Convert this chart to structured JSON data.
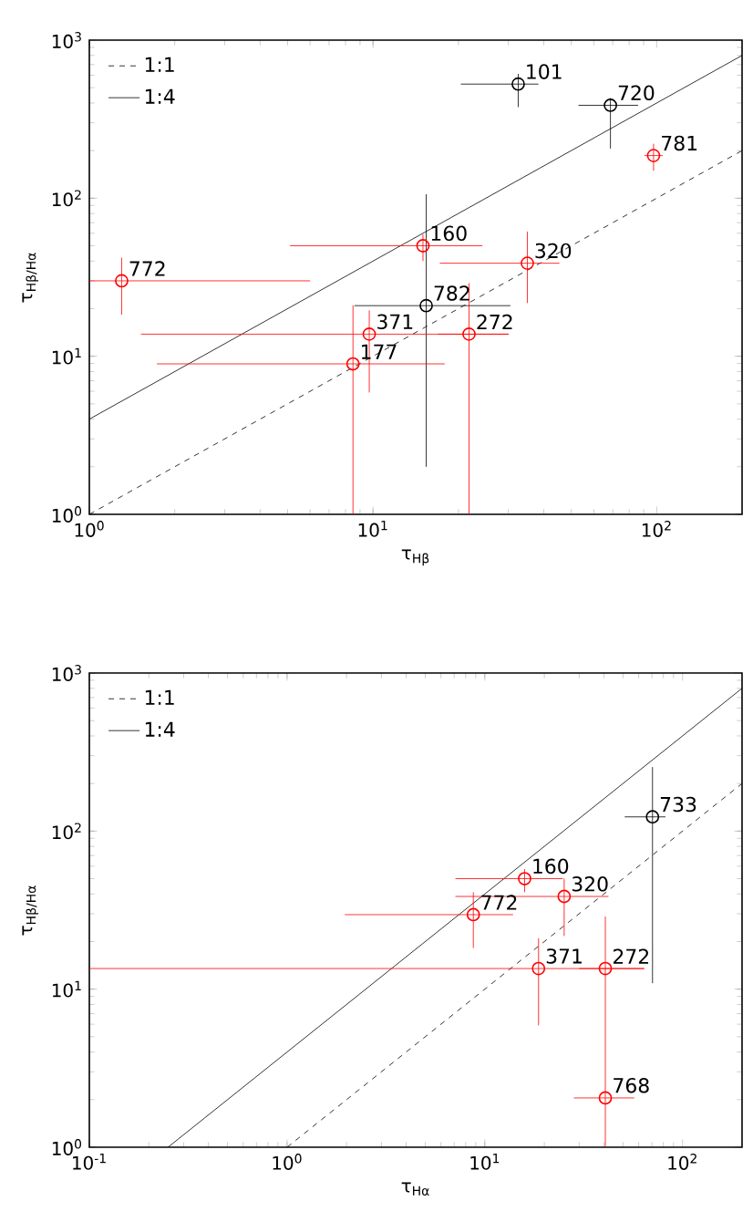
{
  "chart_data": [
    {
      "type": "scatter",
      "xlabel": "τ$_{Hβ}$",
      "ylabel": "τ$_{Hβ/Hα}$",
      "log": "xy",
      "legend": "top left",
      "xlim": [
        1,
        200
      ],
      "ylim": [
        1,
        1000
      ],
      "xticks": [
        {
          "value": 1,
          "label": "10$^{0}$"
        },
        {
          "value": 10,
          "label": "10$^{1}$"
        },
        {
          "value": 100,
          "label": "10$^{2}$"
        }
      ],
      "yticks": [
        {
          "value": 1,
          "label": "10$^{0}$"
        },
        {
          "value": 10,
          "label": "10$^{1}$"
        },
        {
          "value": 100,
          "label": "10$^{2}$"
        },
        {
          "value": 1000,
          "label": "10$^{3}$"
        }
      ],
      "series": [
        {
          "type": "line",
          "name": "1:1",
          "color": "#000000",
          "line_style": "dashed",
          "marker": "none",
          "x": [
            1,
            200
          ],
          "values": [
            1,
            200
          ]
        },
        {
          "type": "line",
          "name": "1:4",
          "color": "#000000",
          "line_style": "solid",
          "marker": "none",
          "x": [
            1,
            200
          ],
          "values": [
            4,
            800
          ]
        },
        {
          "type": "scatter",
          "color": "#000000",
          "marker": "circle",
          "x": [
            32.5,
            68.7,
            15.4
          ],
          "values": [
            527,
            387,
            20.9
          ],
          "xerrors": [
            [
              20.4,
              38.3
            ],
            [
              53,
              86
            ],
            [
              8.6,
              30.5
            ]
          ],
          "errors": [
            [
              377,
              612
            ],
            [
              206,
              430
            ],
            [
              2.0,
              106
            ]
          ]
        },
        {
          "type": "scatter",
          "color": "#ff0000",
          "marker": "circle",
          "x": [
            1.3,
            97.5,
            15.0,
            35.0,
            9.7,
            21.8,
            8.5
          ],
          "values": [
            30,
            186,
            50,
            38.8,
            13.8,
            13.8,
            8.95
          ],
          "xerrors": [
            [
              1.0,
              6.0
            ],
            [
              90.5,
              105
            ],
            [
              5.1,
              24.3
            ],
            [
              17.2,
              45.4
            ],
            [
              1.52,
              30.1
            ],
            [
              17,
              30
            ],
            [
              1.73,
              17.9
            ]
          ],
          "errors": [
            [
              18.3,
              42
            ],
            [
              149,
              221
            ],
            [
              40,
              59
            ],
            [
              21.7,
              61.5
            ],
            [
              5.9,
              19.5
            ],
            [
              1,
              29
            ],
            [
              1,
              21
            ]
          ]
        }
      ],
      "annotations": [
        {
          "text": "101",
          "x": 32.5,
          "y": 527
        },
        {
          "text": "720",
          "x": 68.7,
          "y": 387
        },
        {
          "text": "782",
          "x": 15.4,
          "y": 20.9
        },
        {
          "text": "772",
          "x": 1.3,
          "y": 30
        },
        {
          "text": "781",
          "x": 97.5,
          "y": 186
        },
        {
          "text": "160",
          "x": 15.0,
          "y": 50
        },
        {
          "text": "320",
          "x": 35.0,
          "y": 38.8
        },
        {
          "text": "371",
          "x": 9.7,
          "y": 13.8
        },
        {
          "text": "272",
          "x": 21.8,
          "y": 13.8
        },
        {
          "text": "177",
          "x": 8.5,
          "y": 8.95
        }
      ]
    },
    {
      "type": "scatter",
      "xlabel": "τ$_{Hα}$",
      "ylabel": "τ$_{Hβ/Hα}$",
      "log": "xy",
      "legend": "top left",
      "xlim": [
        0.1,
        200
      ],
      "ylim": [
        1,
        1000
      ],
      "xticks": [
        {
          "value": 0.1,
          "label": "10$^{-1}$"
        },
        {
          "value": 1,
          "label": "10$^{0}$"
        },
        {
          "value": 10,
          "label": "10$^{1}$"
        },
        {
          "value": 100,
          "label": "10$^{2}$"
        }
      ],
      "yticks": [
        {
          "value": 1,
          "label": "10$^{0}$"
        },
        {
          "value": 10,
          "label": "10$^{1}$"
        },
        {
          "value": 100,
          "label": "10$^{2}$"
        },
        {
          "value": 1000,
          "label": "10$^{3}$"
        }
      ],
      "series": [
        {
          "type": "line",
          "name": "1:1",
          "color": "#000000",
          "line_style": "dashed",
          "marker": "none",
          "x": [
            1,
            200
          ],
          "values": [
            1,
            200
          ]
        },
        {
          "type": "line",
          "name": "1:4",
          "color": "#000000",
          "line_style": "solid",
          "marker": "none",
          "x": [
            0.25,
            200
          ],
          "values": [
            1,
            800
          ]
        },
        {
          "type": "scatter",
          "color": "#000000",
          "marker": "circle",
          "x": [
            70.5
          ],
          "values": [
            123
          ],
          "xerrors": [
            [
              51,
              82
            ]
          ],
          "errors": [
            [
              10.9,
              254
            ]
          ]
        },
        {
          "type": "scatter",
          "color": "#ff0000",
          "marker": "circle",
          "x": [
            15.9,
            25.2,
            8.75,
            18.7,
            40.7,
            40.7
          ],
          "values": [
            50,
            38.6,
            29.6,
            13.5,
            13.5,
            2.05
          ],
          "xerrors": [
            [
              7.1,
              24.8
            ],
            [
              7.1,
              42.2
            ],
            [
              1.96,
              13.9
            ],
            [
              0.1,
              64
            ],
            [
              30,
              64
            ],
            [
              28.2,
              57
            ]
          ],
          "errors": [
            [
              41,
              57.5
            ],
            [
              21.7,
              50
            ],
            [
              18.2,
              41
            ],
            [
              5.9,
              21
            ],
            [
              1,
              28.8
            ],
            null
          ]
        }
      ],
      "annotations": [
        {
          "text": "733",
          "x": 70.5,
          "y": 123
        },
        {
          "text": "160",
          "x": 15.9,
          "y": 50
        },
        {
          "text": "320",
          "x": 25.2,
          "y": 38.6
        },
        {
          "text": "772",
          "x": 8.75,
          "y": 29.6
        },
        {
          "text": "371",
          "x": 18.7,
          "y": 13.5
        },
        {
          "text": "272",
          "x": 40.7,
          "y": 13.5
        },
        {
          "text": "768",
          "x": 40.7,
          "y": 2.05
        }
      ]
    }
  ]
}
